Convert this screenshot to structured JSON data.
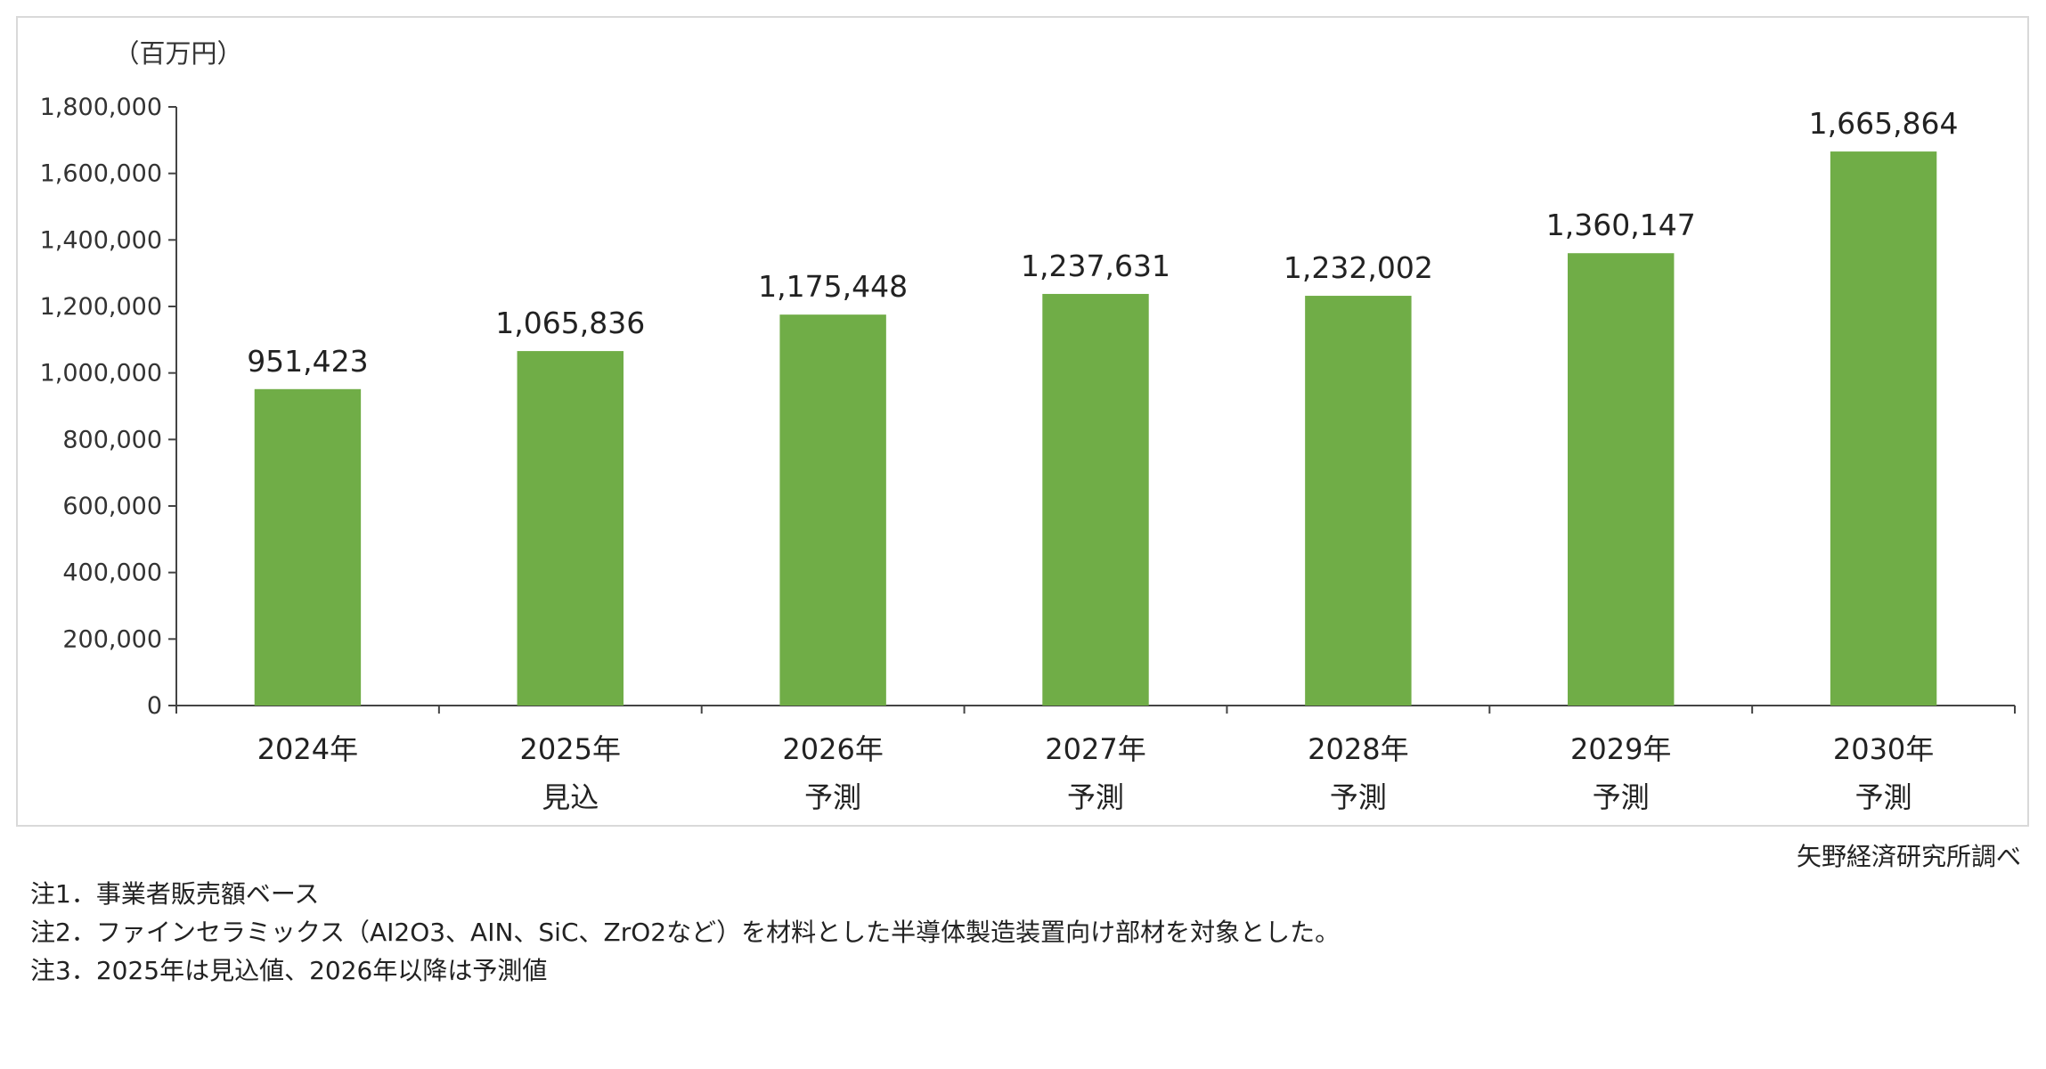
{
  "chart_data": {
    "type": "bar",
    "title": "",
    "ylabel": "（百万円）",
    "ylim": [
      0,
      1800000
    ],
    "yticks": [
      0,
      200000,
      400000,
      600000,
      800000,
      1000000,
      1200000,
      1400000,
      1600000,
      1800000
    ],
    "ytick_labels": [
      "0",
      "200,000",
      "400,000",
      "600,000",
      "800,000",
      "1,000,000",
      "1,200,000",
      "1,400,000",
      "1,600,000",
      "1,800,000"
    ],
    "categories": [
      "2024年",
      "2025年",
      "2026年",
      "2027年",
      "2028年",
      "2029年",
      "2030年"
    ],
    "category_sublabels": [
      "",
      "見込",
      "予測",
      "予測",
      "予測",
      "予測",
      "予測"
    ],
    "values": [
      951423,
      1065836,
      1175448,
      1237631,
      1232002,
      1360147,
      1665864
    ],
    "value_labels": [
      "951,423",
      "1,065,836",
      "1,175,448",
      "1,237,631",
      "1,232,002",
      "1,360,147",
      "1,665,864"
    ],
    "bar_color": "#70ad47",
    "grid": false,
    "legend": "none"
  },
  "source": "矢野経済研究所調べ",
  "notes": [
    "注1．事業者販売額ベース",
    "注2．ファインセラミックス（AI2O3、AIN、SiC、ZrO2など）を材料とした半導体製造装置向け部材を対象とした。",
    "注3．2025年は見込値、2026年以降は予測値"
  ]
}
